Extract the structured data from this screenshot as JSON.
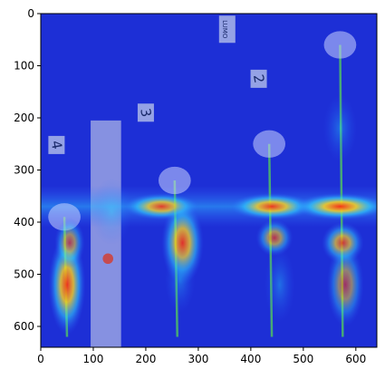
{
  "chart_data": {
    "type": "heatmap",
    "title": "",
    "xlabel": "",
    "ylabel": "",
    "xlim": [
      0,
      640
    ],
    "ylim": [
      640,
      0
    ],
    "image_size": [
      640,
      640
    ],
    "x_ticks": [
      0,
      100,
      200,
      300,
      400,
      500,
      600
    ],
    "y_ticks": [
      0,
      100,
      200,
      300,
      400,
      500,
      600
    ],
    "grid": false,
    "colormap": "jet",
    "background_color": "#1d2fd6",
    "sign_labels": [
      {
        "text": "4",
        "x": 30,
        "y": 252
      },
      {
        "text": "3",
        "x": 200,
        "y": 190
      },
      {
        "text": "2",
        "x": 415,
        "y": 125
      },
      {
        "text": "LUMO",
        "x": 355,
        "y": 30
      }
    ],
    "plants": [
      {
        "x": 45,
        "bloom_y": 390,
        "base_y": 620
      },
      {
        "x": 255,
        "bloom_y": 320,
        "base_y": 620
      },
      {
        "x": 435,
        "bloom_y": 250,
        "base_y": 620
      },
      {
        "x": 570,
        "bloom_y": 60,
        "base_y": 620
      }
    ],
    "heat_spots": [
      {
        "x": 50,
        "y": 520,
        "w": 22,
        "h": 60,
        "level": 0.85
      },
      {
        "x": 55,
        "y": 440,
        "w": 18,
        "h": 30,
        "level": 0.55
      },
      {
        "x": 230,
        "y": 370,
        "w": 45,
        "h": 16,
        "level": 0.8
      },
      {
        "x": 270,
        "y": 440,
        "w": 25,
        "h": 50,
        "level": 0.8
      },
      {
        "x": 265,
        "y": 510,
        "w": 18,
        "h": 40,
        "level": 0.45
      },
      {
        "x": 440,
        "y": 370,
        "w": 50,
        "h": 16,
        "level": 0.85
      },
      {
        "x": 445,
        "y": 430,
        "w": 22,
        "h": 22,
        "level": 0.6
      },
      {
        "x": 455,
        "y": 520,
        "w": 18,
        "h": 45,
        "level": 0.45
      },
      {
        "x": 570,
        "y": 370,
        "w": 55,
        "h": 16,
        "level": 0.9
      },
      {
        "x": 575,
        "y": 440,
        "w": 25,
        "h": 25,
        "level": 0.7
      },
      {
        "x": 580,
        "y": 520,
        "w": 22,
        "h": 50,
        "level": 0.5
      },
      {
        "x": 570,
        "y": 220,
        "w": 20,
        "h": 40,
        "level": 0.45
      },
      {
        "x": 135,
        "y": 380,
        "w": 25,
        "h": 40,
        "level": 0.35
      }
    ]
  }
}
